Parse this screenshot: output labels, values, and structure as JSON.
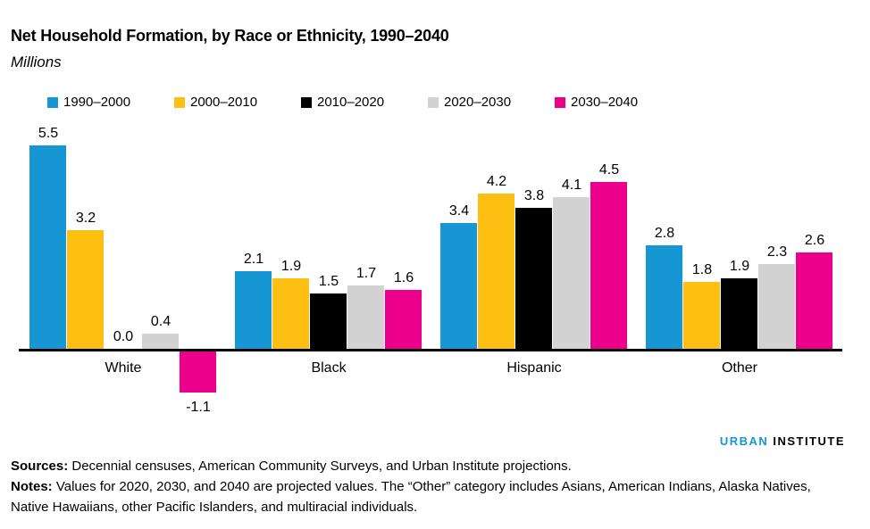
{
  "header": {
    "title": "Net Household Formation, by Race or Ethnicity, 1990–2040",
    "subtitle": "Millions"
  },
  "chart_data": {
    "type": "bar",
    "title": "Net Household Formation, by Race or Ethnicity, 1990–2040",
    "ylabel": "Millions",
    "xlabel": "",
    "categories": [
      "White",
      "Black",
      "Hispanic",
      "Other"
    ],
    "series": [
      {
        "name": "1990–2000",
        "color": "#1696d2",
        "values": [
          5.5,
          2.1,
          3.4,
          2.8
        ]
      },
      {
        "name": "2000–2010",
        "color": "#fdbf11",
        "values": [
          3.2,
          1.9,
          4.2,
          1.8
        ]
      },
      {
        "name": "2010–2020",
        "color": "#000000",
        "values": [
          0.0,
          1.5,
          3.8,
          1.9
        ]
      },
      {
        "name": "2020–2030",
        "color": "#d2d2d2",
        "values": [
          0.4,
          1.7,
          4.1,
          2.3
        ]
      },
      {
        "name": "2030–2040",
        "color": "#ec008b",
        "values": [
          -1.1,
          1.6,
          4.5,
          2.6
        ]
      }
    ],
    "baseline": 0,
    "ylim": [
      -1.5,
      6
    ],
    "grid": false,
    "legend_position": "top",
    "value_labels_shown": true
  },
  "logo": {
    "word1": "URBAN",
    "word2": "INSTITUTE",
    "word1_color": "#1696d2",
    "word2_color": "#000000"
  },
  "footer": {
    "sources_label": "Sources:",
    "sources_text": " Decennial censuses, American Community Surveys, and Urban Institute projections.",
    "notes_label": "Notes:",
    "notes_text": " Values for 2020, 2030, and 2040 are projected values. The “Other” category includes Asians, American Indians, Alaska Natives, Native Hawaiians, other Pacific Islanders, and multiracial individuals."
  }
}
